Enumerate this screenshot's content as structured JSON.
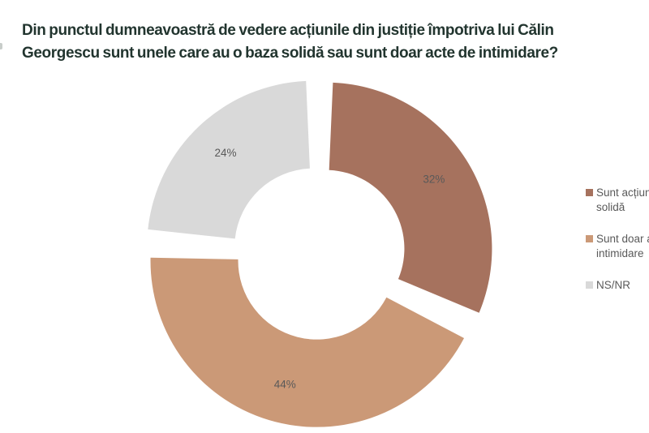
{
  "title": {
    "lines": [
      "Din punctul dumneavoastră de vedere acțiunile din justiție împotriva lui Călin",
      "Georgescu sunt unele care au o baza solidă sau sunt doar acte de intimidare?"
    ]
  },
  "chart_data": {
    "type": "pie",
    "donut": true,
    "categories": [
      "Sunt acțiuni... solidă",
      "Sunt doar ac... intimidare",
      "NS/NR"
    ],
    "values": [
      32,
      44,
      24
    ],
    "unit": "%",
    "data_labels": [
      "32%",
      "44%",
      "24%"
    ],
    "colors": [
      "#A6725E",
      "#CB9977",
      "#D9D9D9"
    ],
    "start_angle_deg": 0,
    "direction": "clockwise",
    "inner_radius_ratio": 0.47,
    "exploded": true,
    "legend_position": "right",
    "label_color": "#595959",
    "title": "Din punctul dumneavoastră de vedere acțiunile din justiție împotriva lui Călin Georgescu sunt unele care au o baza solidă sau sunt doar acte de intimidare?"
  },
  "legend": {
    "items": [
      {
        "lines": [
          "Sunt acțiuni",
          "solidă"
        ]
      },
      {
        "lines": [
          "Sunt doar ac",
          "intimidare"
        ]
      },
      {
        "lines": [
          "NS/NR"
        ]
      }
    ]
  },
  "colors": {
    "title_text": "#22352F",
    "label_text": "#595959",
    "background": "#FFFFFF"
  }
}
